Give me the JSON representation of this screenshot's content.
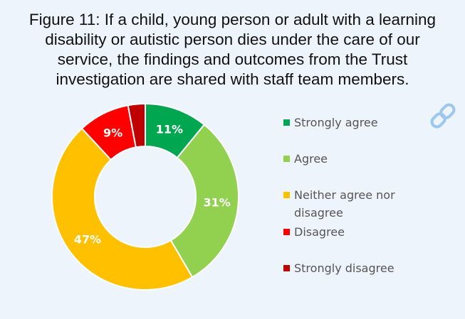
{
  "figure": {
    "title_lines": [
      "Figure 11: If a child, young person or adult with a learning",
      "disability or autistic person dies under the care of our",
      "service, the findings and outcomes from the Trust",
      "investigation are shared with staff team members."
    ]
  },
  "chart_data": {
    "type": "pie",
    "variant": "donut",
    "title": "Figure 11: If a child, young person or adult with a learning disability or autistic person dies under the care of our service, the findings and outcomes from the Trust investigation are shared with staff team members.",
    "categories": [
      "Strongly agree",
      "Agree",
      "Neither agree nor disagree",
      "Disagree",
      "Strongly disagree"
    ],
    "values": [
      11,
      31,
      47,
      9,
      3
    ],
    "data_labels": [
      "11%",
      "31%",
      "47%",
      "9%",
      ""
    ],
    "colors": [
      "#00a650",
      "#92d050",
      "#ffc000",
      "#ff0000",
      "#c00000"
    ],
    "legend_position": "right"
  },
  "legend": {
    "items": [
      {
        "label_lines": [
          "Strongly agree"
        ]
      },
      {
        "label_lines": [
          "Agree"
        ]
      },
      {
        "label_lines": [
          "Neither agree nor",
          "disagree"
        ]
      },
      {
        "label_lines": [
          "Disagree"
        ]
      },
      {
        "label_lines": [
          "Strongly disagree"
        ]
      }
    ]
  },
  "icons": {
    "corner": "link-icon"
  }
}
